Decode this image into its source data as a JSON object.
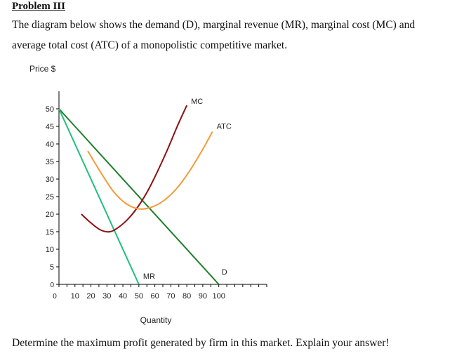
{
  "problem": {
    "title": "Problem III",
    "intro_line1": "The diagram below shows the demand (D), marginal revenue (MR), marginal cost (MC) and",
    "intro_line2": "average total cost (ATC) of a monopolistic competitive market.",
    "question": "Determine the maximum profit generated by firm in this market. Explain your answer!"
  },
  "colors": {
    "demand": "#1e7f2a",
    "mr": "#1fbf7a",
    "mc": "#8b1010",
    "atc": "#f59a3a",
    "axis": "#000000"
  },
  "chart_data": {
    "type": "line",
    "ylabel": "Price $",
    "xlabel": "Quantity",
    "xlim": [
      0,
      130
    ],
    "ylim": [
      0,
      55
    ],
    "x_ticks": [
      0,
      10,
      20,
      30,
      40,
      50,
      60,
      70,
      80,
      90,
      100
    ],
    "y_ticks": [
      0,
      5,
      10,
      15,
      20,
      25,
      30,
      35,
      40,
      45,
      50
    ],
    "grid": false,
    "series": [
      {
        "name": "D",
        "color_key": "demand",
        "points": [
          [
            0,
            50
          ],
          [
            100,
            0
          ]
        ]
      },
      {
        "name": "MR",
        "color_key": "mr",
        "points": [
          [
            0,
            50
          ],
          [
            50,
            0
          ]
        ]
      },
      {
        "name": "MC",
        "color_key": "mc",
        "points": [
          [
            14,
            20
          ],
          [
            20,
            17.5
          ],
          [
            26,
            15.5
          ],
          [
            32,
            15
          ],
          [
            38,
            16.5
          ],
          [
            44,
            19
          ],
          [
            50,
            22.5
          ],
          [
            56,
            27
          ],
          [
            62,
            32.5
          ],
          [
            68,
            38.5
          ],
          [
            74,
            45
          ],
          [
            80,
            51
          ]
        ]
      },
      {
        "name": "ATC",
        "color_key": "atc",
        "points": [
          [
            18,
            38
          ],
          [
            26,
            32
          ],
          [
            34,
            26.5
          ],
          [
            42,
            23
          ],
          [
            50,
            21.5
          ],
          [
            58,
            22
          ],
          [
            66,
            24
          ],
          [
            74,
            27.5
          ],
          [
            82,
            32.5
          ],
          [
            90,
            38.5
          ],
          [
            96,
            43.5
          ]
        ]
      }
    ]
  }
}
